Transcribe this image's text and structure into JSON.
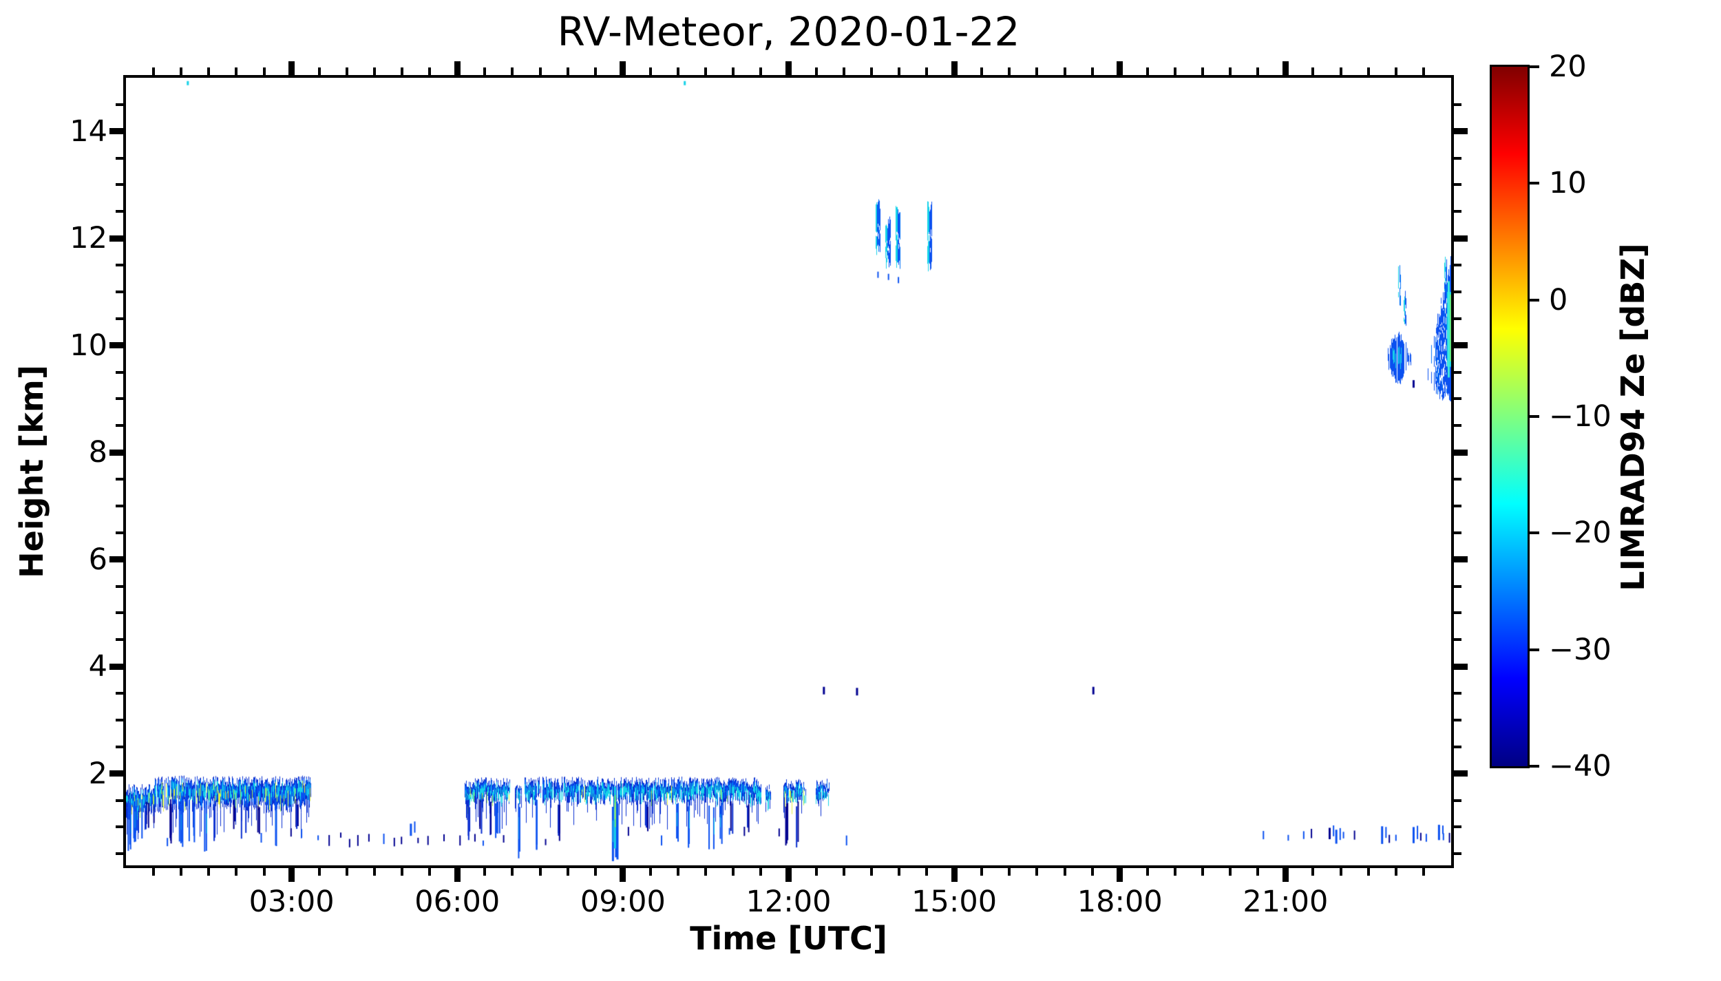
{
  "figure": {
    "title": "RV-Meteor, 2020-01-22"
  },
  "axes": {
    "xlabel": "Time [UTC]",
    "ylabel": "Height [km]"
  },
  "colorbar": {
    "label": "LIMRAD94 Ze [dBZ]",
    "tick_labels": [
      "20",
      "10",
      "0",
      "−10",
      "−20",
      "−30",
      "−40"
    ],
    "tick_values": [
      20,
      10,
      0,
      -10,
      -20,
      -30,
      -40
    ],
    "vmin": -40,
    "vmax": 20,
    "colormap": "jet",
    "gradient_stops": [
      [
        "#000083",
        0
      ],
      [
        "#0000ff",
        12.5
      ],
      [
        "#00ffff",
        37.5
      ],
      [
        "#ffff00",
        62.5
      ],
      [
        "#ff0000",
        87.5
      ],
      [
        "#800000",
        100
      ]
    ]
  },
  "chart_data": {
    "type": "heatmap",
    "title": "RV-Meteor, 2020-01-22",
    "xlabel": "Time [UTC]",
    "ylabel": "Height [km]",
    "value_label": "LIMRAD94 Ze [dBZ]",
    "value_range_dbz": [
      -40,
      20
    ],
    "x_range_hours": [
      0,
      24
    ],
    "y_range_km": [
      0.3,
      15
    ],
    "grid": false,
    "x_major_ticks": {
      "hours": [
        3,
        6,
        9,
        12,
        15,
        18,
        21
      ],
      "labels": [
        "03:00",
        "06:00",
        "09:00",
        "12:00",
        "15:00",
        "18:00",
        "21:00"
      ]
    },
    "x_minor_step_hours": 0.5,
    "y_major_ticks": {
      "km": [
        2,
        4,
        6,
        8,
        10,
        12,
        14
      ],
      "labels": [
        "2",
        "4",
        "6",
        "8",
        "10",
        "12",
        "14"
      ]
    },
    "y_minor_step_km": 0.5,
    "palette": {
      "navy": "#000090",
      "blue_dark": "#0a2fd0",
      "blue": "#0a50f0",
      "blue_med": "#0070f8",
      "sky": "#00a2f8",
      "cyan": "#17d2e8",
      "cyan_bright": "#3cecdc",
      "green": "#62e87a",
      "ygreen": "#aaee55",
      "yellow": "#e2ee45"
    },
    "features": {
      "cloud_bands": [
        {
          "t0": 0.0,
          "t1": 0.52,
          "top": 1.7,
          "base": 1.3,
          "bright": 0.22,
          "gap": 0.02
        },
        {
          "t0": 0.52,
          "t1": 3.35,
          "top": 1.86,
          "base": 1.42,
          "bright": 0.16,
          "gap": 0.05
        },
        {
          "t0": 6.14,
          "t1": 6.95,
          "top": 1.83,
          "base": 1.56,
          "bright": 0.08,
          "gap": 0.04
        },
        {
          "t0": 7.04,
          "t1": 7.16,
          "top": 1.8,
          "base": 1.62,
          "bright": 0.04,
          "gap": 0.0
        },
        {
          "t0": 7.22,
          "t1": 11.5,
          "top": 1.84,
          "base": 1.55,
          "bright": 0.07,
          "gap": 0.04
        },
        {
          "t0": 11.58,
          "t1": 11.68,
          "top": 1.74,
          "base": 1.6,
          "bright": 0.0,
          "gap": 0.0
        },
        {
          "t0": 11.91,
          "t1": 12.31,
          "top": 1.8,
          "base": 1.6,
          "bright": 0.04,
          "gap": 0.06
        },
        {
          "t0": 12.49,
          "t1": 12.74,
          "top": 1.8,
          "base": 1.62,
          "bright": 0.04,
          "gap": 0.04
        }
      ],
      "virga": [
        {
          "t": 0.08,
          "w": 18,
          "b": 0.55,
          "s": 1
        },
        {
          "t": 0.15,
          "w": 14,
          "b": 0.7,
          "s": 1
        },
        {
          "t": 0.24,
          "w": 10,
          "b": 0.78,
          "s": 1
        },
        {
          "t": 0.38,
          "w": 6,
          "b": 0.95,
          "s": 0
        },
        {
          "t": 0.5,
          "w": 5,
          "b": 1.05,
          "s": 0
        },
        {
          "t": 0.8,
          "w": 6,
          "b": 0.68,
          "s": 0
        },
        {
          "t": 1.0,
          "w": 8,
          "b": 0.6,
          "s": 1
        },
        {
          "t": 1.18,
          "w": 8,
          "b": 0.7,
          "s": 1
        },
        {
          "t": 1.45,
          "w": 7,
          "b": 0.5,
          "s": 1
        },
        {
          "t": 1.57,
          "w": 5,
          "b": 0.68,
          "s": 0
        },
        {
          "t": 1.95,
          "w": 5,
          "b": 0.95,
          "s": 0
        },
        {
          "t": 2.12,
          "w": 7,
          "b": 0.75,
          "s": 0
        },
        {
          "t": 2.4,
          "w": 5,
          "b": 0.85,
          "s": 0
        },
        {
          "t": 2.7,
          "w": 9,
          "b": 0.5,
          "s": 1
        },
        {
          "t": 3.1,
          "w": 5,
          "b": 0.85,
          "s": 0
        },
        {
          "t": 6.2,
          "w": 5,
          "b": 0.75,
          "s": 0
        },
        {
          "t": 6.4,
          "w": 5,
          "b": 0.85,
          "s": 0
        },
        {
          "t": 6.58,
          "w": 5,
          "b": 0.7,
          "s": 0
        },
        {
          "t": 6.72,
          "w": 6,
          "b": 0.72,
          "s": 1
        },
        {
          "t": 7.14,
          "w": 9,
          "b": 0.38,
          "s": 1
        },
        {
          "t": 7.42,
          "w": 8,
          "b": 0.55,
          "s": 1
        },
        {
          "t": 7.84,
          "w": 5,
          "b": 0.72,
          "s": 0
        },
        {
          "t": 8.85,
          "w": 9,
          "b": 0.3,
          "s": 2
        },
        {
          "t": 9.42,
          "w": 4,
          "b": 0.85,
          "s": 0
        },
        {
          "t": 9.95,
          "w": 7,
          "b": 0.62,
          "s": 1
        },
        {
          "t": 10.16,
          "w": 8,
          "b": 0.56,
          "s": 1
        },
        {
          "t": 10.6,
          "w": 10,
          "b": 0.5,
          "s": 1
        },
        {
          "t": 10.76,
          "w": 7,
          "b": 0.65,
          "s": 1
        },
        {
          "t": 10.95,
          "w": 6,
          "b": 0.8,
          "s": 0
        },
        {
          "t": 11.25,
          "w": 5,
          "b": 0.85,
          "s": 0
        },
        {
          "t": 11.95,
          "w": 4,
          "b": 0.65,
          "s": 0
        },
        {
          "t": 12.15,
          "w": 4,
          "b": 0.6,
          "s": 0
        }
      ],
      "specks": [
        [
          0.75,
          0.72,
          0
        ],
        [
          2.45,
          0.8,
          0
        ],
        [
          2.99,
          0.9,
          0
        ],
        [
          3.18,
          0.88,
          0
        ],
        [
          3.48,
          0.8,
          0
        ],
        [
          3.68,
          0.75,
          0
        ],
        [
          3.89,
          0.85,
          0
        ],
        [
          4.05,
          0.7,
          0
        ],
        [
          4.2,
          0.75,
          0
        ],
        [
          4.4,
          0.8,
          0
        ],
        [
          4.67,
          0.78,
          0
        ],
        [
          4.86,
          0.72,
          0
        ],
        [
          4.99,
          0.75,
          0
        ],
        [
          5.16,
          0.95,
          1
        ],
        [
          5.29,
          0.75,
          0
        ],
        [
          5.47,
          0.75,
          0
        ],
        [
          5.76,
          0.8,
          0
        ],
        [
          6.05,
          0.75,
          0
        ],
        [
          6.32,
          0.8,
          0
        ],
        [
          6.47,
          0.7,
          0
        ],
        [
          6.84,
          0.78,
          0
        ],
        [
          7.6,
          0.72,
          0
        ],
        [
          9.1,
          0.92,
          0
        ],
        [
          9.7,
          0.75,
          0
        ],
        [
          10.93,
          0.92,
          0
        ],
        [
          11.2,
          0.92,
          0
        ],
        [
          11.83,
          0.9,
          0
        ],
        [
          13.05,
          0.75,
          0
        ],
        [
          20.6,
          0.85,
          0
        ],
        [
          21.05,
          0.8,
          0
        ],
        [
          21.33,
          0.85,
          0
        ],
        [
          21.47,
          0.88,
          0
        ],
        [
          21.8,
          0.88,
          1
        ],
        [
          21.92,
          0.82,
          1
        ],
        [
          22.05,
          0.85,
          0
        ],
        [
          22.25,
          0.85,
          0
        ],
        [
          22.75,
          0.85,
          1
        ],
        [
          22.88,
          0.78,
          0
        ],
        [
          23.0,
          0.8,
          0
        ],
        [
          23.32,
          0.85,
          1
        ],
        [
          23.45,
          0.82,
          0
        ],
        [
          23.55,
          0.8,
          0
        ],
        [
          23.78,
          0.9,
          1
        ],
        [
          23.86,
          0.82,
          0
        ],
        [
          23.97,
          0.8,
          0
        ]
      ],
      "mid_specks": [
        [
          12.64,
          3.55
        ],
        [
          13.24,
          3.53
        ],
        [
          17.52,
          3.55
        ],
        [
          23.32,
          9.28
        ]
      ],
      "top_specks": [
        [
          1.12,
          14.9
        ],
        [
          10.12,
          14.9
        ]
      ],
      "high_sub_dashes": [
        [
          13.62,
          11.32
        ],
        [
          13.81,
          11.28
        ],
        [
          13.99,
          11.22
        ]
      ],
      "high_streaks": [
        {
          "t": 13.61,
          "h0": 11.7,
          "h1": 12.65,
          "w": 7
        },
        {
          "t": 13.8,
          "h0": 11.5,
          "h1": 12.3,
          "w": 7
        },
        {
          "t": 13.98,
          "h0": 11.45,
          "h1": 12.55,
          "w": 7
        },
        {
          "t": 14.55,
          "h0": 11.45,
          "h1": 12.6,
          "w": 6
        },
        {
          "t": 23.07,
          "h0": 10.75,
          "h1": 11.42,
          "w": 4
        },
        {
          "t": 23.16,
          "h0": 10.32,
          "h1": 10.95,
          "w": 4
        },
        {
          "t": 23.9,
          "h0": 10.9,
          "h1": 11.55,
          "w": 3
        }
      ],
      "high_clusters": [
        {
          "kind": "blob",
          "t0": 22.85,
          "t1": 23.27,
          "hc": 9.75,
          "hmax_half": 0.34
        },
        {
          "kind": "wedge",
          "t0": 23.52,
          "t1": 24.0,
          "hTop0": 9.5,
          "hTop1": 11.5,
          "hBot0": 9.3,
          "hBot1": 8.95
        }
      ]
    }
  }
}
